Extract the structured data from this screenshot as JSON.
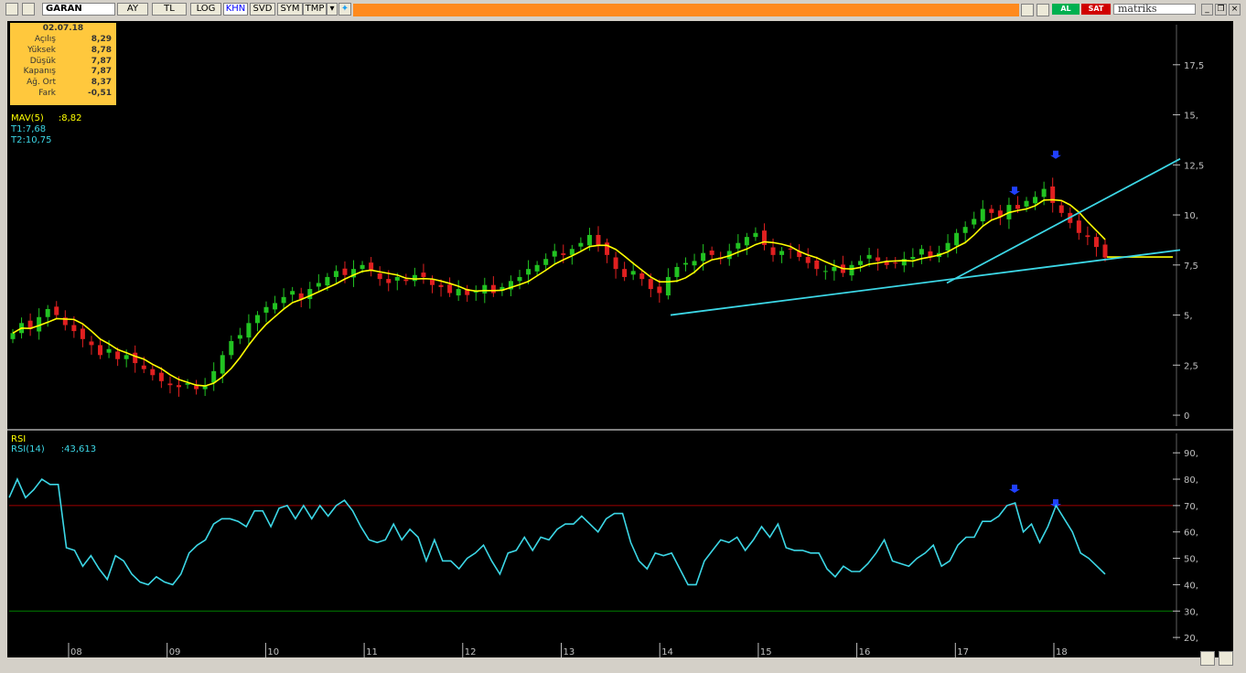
{
  "toolbar": {
    "symbol": "GARAN",
    "buttons": [
      "AY",
      "TL",
      "LOG",
      "KHN",
      "SVD",
      "SYM",
      "TMP"
    ],
    "active_button": "KHN",
    "buy_label": "AL",
    "sell_label": "SAT",
    "brand": "matriks"
  },
  "info": {
    "date": "02.07.18",
    "rows": [
      {
        "label": "Açılış",
        "value": "8,29"
      },
      {
        "label": "Yüksek",
        "value": "8,78"
      },
      {
        "label": "Düşük",
        "value": "7,87"
      },
      {
        "label": "Kapanış",
        "value": "7,87"
      },
      {
        "label": "Ağ. Ort",
        "value": "8,37"
      },
      {
        "label": "Fark",
        "value": "-0,51"
      }
    ]
  },
  "legend": {
    "mav_name": "MAV(5)",
    "mav_value": ":8,82",
    "t1": "T1:7,68",
    "t2": "T2:10,75",
    "rsi_title": "RSI",
    "rsi_name": "RSI(14)",
    "rsi_value": ":43,613"
  },
  "colors": {
    "up": "#22c322",
    "down": "#e02020",
    "mav": "#ffff00",
    "trend": "#3cd7e6",
    "rsi": "#3cd7e6",
    "axis": "#c0c0c0",
    "rsi_upper": "#a00000",
    "rsi_lower": "#008000",
    "arrow": "#2040ff"
  },
  "chart_data": [
    {
      "type": "candlestick",
      "title": "",
      "y_ticks": [
        "17,5",
        "15,",
        "12,5",
        "10,",
        "7,5",
        "5,",
        "2,5",
        "0"
      ],
      "y_tick_values": [
        17.5,
        15,
        12.5,
        10,
        7.5,
        5,
        2.5,
        0
      ],
      "x_ticks": [
        "08",
        "09",
        "10",
        "11",
        "12",
        "13",
        "14",
        "15",
        "16",
        "17",
        "18"
      ],
      "series": [
        {
          "name": "MAV(5)",
          "last": 8.82
        },
        {
          "name": "T1",
          "value": 7.68
        },
        {
          "name": "T2",
          "value": 10.75
        }
      ],
      "close_approx": [
        4.1,
        4.6,
        4.3,
        4.9,
        5.3,
        5.0,
        4.5,
        4.2,
        3.8,
        3.5,
        3.0,
        3.3,
        2.8,
        3.0,
        2.6,
        2.3,
        2.0,
        1.7,
        1.5,
        1.4,
        1.6,
        1.3,
        1.5,
        2.2,
        3.0,
        3.7,
        4.0,
        4.6,
        5.0,
        5.4,
        5.6,
        5.9,
        6.2,
        5.8,
        6.3,
        6.6,
        6.9,
        7.2,
        7.0,
        7.3,
        7.5,
        7.2,
        6.8,
        6.6,
        6.9,
        6.7,
        7.0,
        6.9,
        6.5,
        6.4,
        6.1,
        6.3,
        6.0,
        6.2,
        6.5,
        6.1,
        6.4,
        6.7,
        6.9,
        7.3,
        7.5,
        7.8,
        8.2,
        8.0,
        8.3,
        8.6,
        9.0,
        8.5,
        8.0,
        7.3,
        6.9,
        7.2,
        6.8,
        6.3,
        6.1,
        6.9,
        7.4,
        7.6,
        7.7,
        8.1,
        8.0,
        7.8,
        8.2,
        8.6,
        8.9,
        9.1,
        8.5,
        8.0,
        8.2,
        8.3,
        7.9,
        7.6,
        7.3,
        7.2,
        7.4,
        7.1,
        7.5,
        7.7,
        8.0,
        7.7,
        7.5,
        7.6,
        7.8,
        7.9,
        8.3,
        7.9,
        8.1,
        8.6,
        9.1,
        9.4,
        9.8,
        10.3,
        10.1,
        9.9,
        10.5,
        10.3,
        10.7,
        10.9,
        11.3,
        10.6,
        10.1,
        9.6,
        9.1,
        8.9,
        8.4,
        7.87
      ]
    },
    {
      "type": "line",
      "title": "RSI",
      "y_ticks": [
        "90,",
        "80,",
        "70,",
        "60,",
        "50,",
        "40,",
        "30,",
        "20,"
      ],
      "y_tick_values": [
        90,
        80,
        70,
        60,
        50,
        40,
        30,
        20
      ],
      "reference_lines": [
        70,
        30
      ],
      "series": [
        {
          "name": "RSI(14)",
          "last": 43.613,
          "values": [
            73,
            80,
            73,
            76,
            80,
            78,
            78,
            54,
            53,
            47,
            51,
            46,
            42,
            51,
            49,
            44,
            41,
            40,
            43,
            41,
            40,
            44,
            52,
            55,
            57,
            63,
            65,
            65,
            64,
            62,
            68,
            68,
            62,
            69,
            70,
            65,
            70,
            65,
            70,
            66,
            70,
            72,
            68,
            62,
            57,
            56,
            57,
            63,
            57,
            61,
            58,
            49,
            57,
            49,
            49,
            46,
            50,
            52,
            55,
            49,
            44,
            52,
            53,
            58,
            53,
            58,
            57,
            61,
            63,
            63,
            66,
            63,
            60,
            65,
            67,
            67,
            56,
            49,
            46,
            52,
            51,
            52,
            46,
            40,
            40,
            49,
            53,
            57,
            56,
            58,
            53,
            57,
            62,
            58,
            63,
            54,
            53,
            53,
            52,
            52,
            46,
            43,
            47,
            45,
            45,
            48,
            52,
            57,
            49,
            48,
            47,
            50,
            52,
            55,
            47,
            49,
            55,
            58,
            58,
            64,
            64,
            66,
            70,
            71,
            60,
            63,
            56,
            62,
            70,
            65,
            60,
            52,
            50,
            47,
            44
          ]
        }
      ]
    }
  ]
}
